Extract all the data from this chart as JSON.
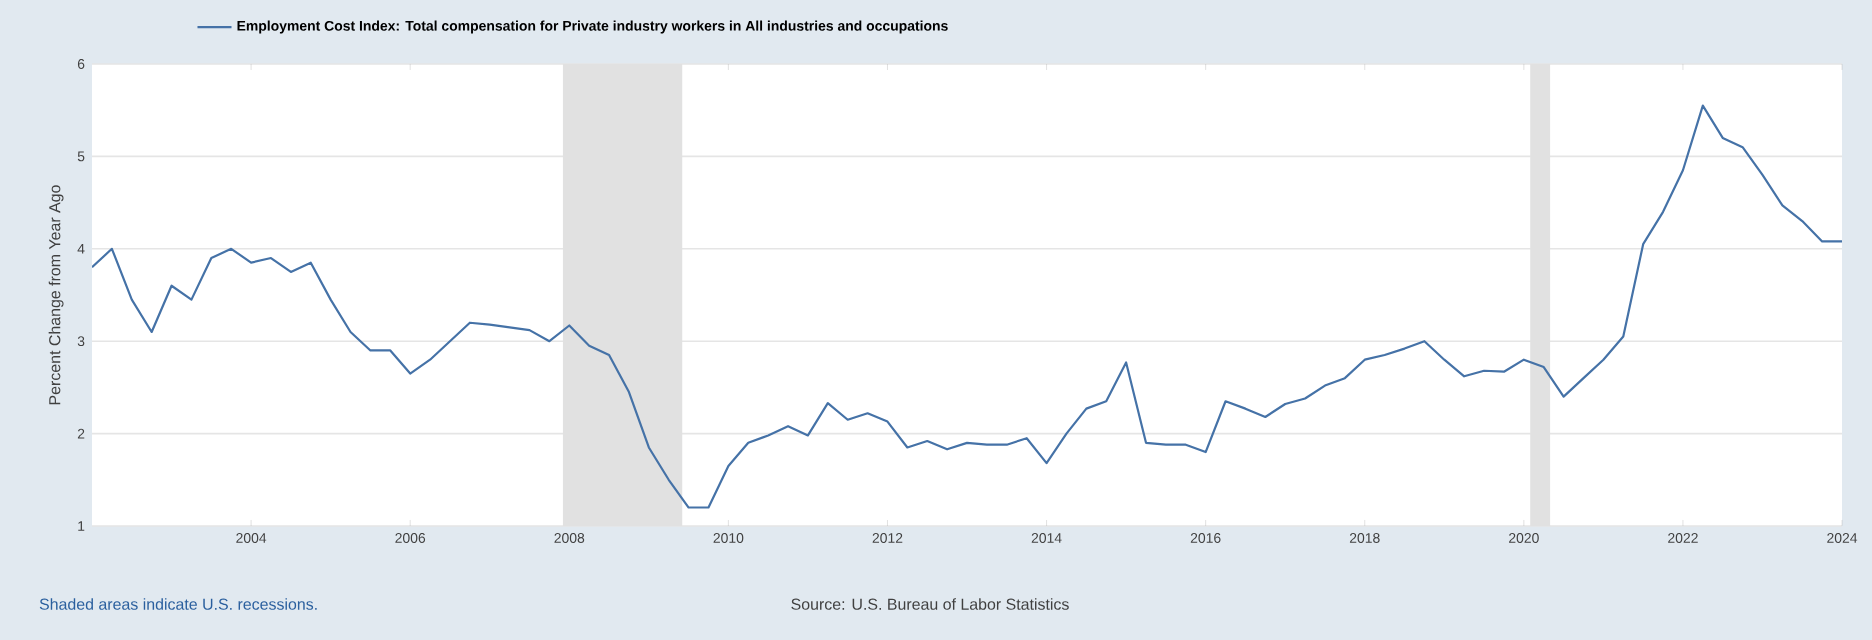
{
  "chart_data": {
    "type": "line",
    "ylabel": "Percent Change from Year Ago",
    "annotations": [
      "Shaded areas indicate U.S. recessions.",
      "Source: U.S. Bureau of Labor Statistics"
    ],
    "x": [
      2002.0,
      2002.25,
      2002.5,
      2002.75,
      2003.0,
      2003.25,
      2003.5,
      2003.75,
      2004.0,
      2004.25,
      2004.5,
      2004.75,
      2005.0,
      2005.25,
      2005.5,
      2005.75,
      2006.0,
      2006.25,
      2006.5,
      2006.75,
      2007.0,
      2007.25,
      2007.5,
      2007.75,
      2008.0,
      2008.25,
      2008.5,
      2008.75,
      2009.0,
      2009.25,
      2009.5,
      2009.75,
      2010.0,
      2010.25,
      2010.5,
      2010.75,
      2011.0,
      2011.25,
      2011.5,
      2011.75,
      2012.0,
      2012.25,
      2012.5,
      2012.75,
      2013.0,
      2013.25,
      2013.5,
      2013.75,
      2014.0,
      2014.25,
      2014.5,
      2014.75,
      2015.0,
      2015.25,
      2015.5,
      2015.75,
      2016.0,
      2016.25,
      2016.5,
      2016.75,
      2017.0,
      2017.25,
      2017.5,
      2017.75,
      2018.0,
      2018.25,
      2018.5,
      2018.75,
      2019.0,
      2019.25,
      2019.5,
      2019.75,
      2020.0,
      2020.25,
      2020.5,
      2020.75,
      2021.0,
      2021.25,
      2021.5,
      2021.75,
      2022.0,
      2022.25,
      2022.5,
      2022.75,
      2023.0,
      2023.25,
      2023.5,
      2023.75,
      2024.0
    ],
    "series": [
      {
        "name": "Employment Cost Index: Total compensation for Private industry workers in All industries and occupations",
        "color": "#4572a7",
        "values": [
          3.8,
          4.0,
          3.45,
          3.1,
          3.6,
          3.45,
          3.9,
          4.0,
          3.85,
          3.9,
          3.75,
          3.85,
          3.45,
          3.1,
          2.9,
          2.9,
          2.65,
          2.8,
          3.0,
          3.2,
          3.18,
          3.15,
          3.12,
          3.0,
          3.17,
          2.95,
          2.85,
          2.45,
          1.85,
          1.5,
          1.2,
          1.2,
          1.65,
          1.9,
          1.98,
          2.08,
          1.98,
          2.33,
          2.15,
          2.22,
          2.13,
          1.85,
          1.92,
          1.83,
          1.9,
          1.88,
          1.88,
          1.95,
          1.68,
          2.0,
          2.27,
          2.35,
          2.77,
          1.9,
          1.88,
          1.88,
          1.8,
          2.35,
          2.27,
          2.18,
          2.32,
          2.38,
          2.52,
          2.6,
          2.8,
          2.85,
          2.92,
          3.0,
          2.8,
          2.62,
          2.68,
          2.67,
          2.8,
          2.72,
          2.4,
          2.6,
          2.8,
          3.05,
          4.05,
          4.4,
          4.85,
          5.55,
          5.2,
          5.1,
          4.8,
          4.47,
          4.3,
          4.08,
          4.08
        ]
      }
    ],
    "xlim": [
      2002,
      2024
    ],
    "ylim": [
      1,
      6
    ],
    "xticks": [
      2004,
      2006,
      2008,
      2010,
      2012,
      2014,
      2016,
      2018,
      2020,
      2022,
      2024
    ],
    "yticks": [
      1,
      2,
      3,
      4,
      5,
      6
    ],
    "bands": [
      {
        "axis": "x",
        "from": 2007.92,
        "to": 2009.42,
        "color": "#e1e1e1"
      },
      {
        "axis": "x",
        "from": 2020.08,
        "to": 2020.33,
        "color": "#e1e1e1"
      }
    ],
    "grid": "y",
    "legend": "top left"
  }
}
